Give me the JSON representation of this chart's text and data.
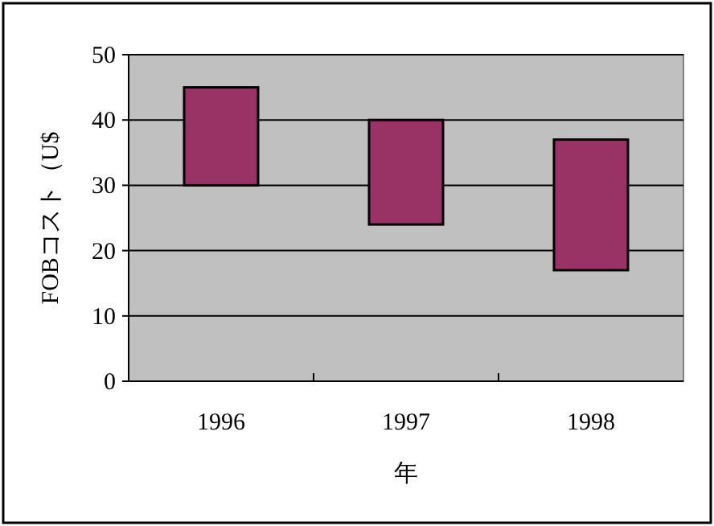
{
  "chart_data": {
    "type": "bar",
    "categories": [
      "1996",
      "1997",
      "1998"
    ],
    "base": [
      30,
      24,
      17
    ],
    "values": [
      15,
      16,
      20
    ],
    "color": "#993366",
    "xlabel": "年",
    "ylabel": "FOBコスト（U$",
    "ylim": [
      0,
      50
    ],
    "yticks": [
      0,
      10,
      20,
      30,
      40,
      50
    ],
    "grid": "y"
  }
}
